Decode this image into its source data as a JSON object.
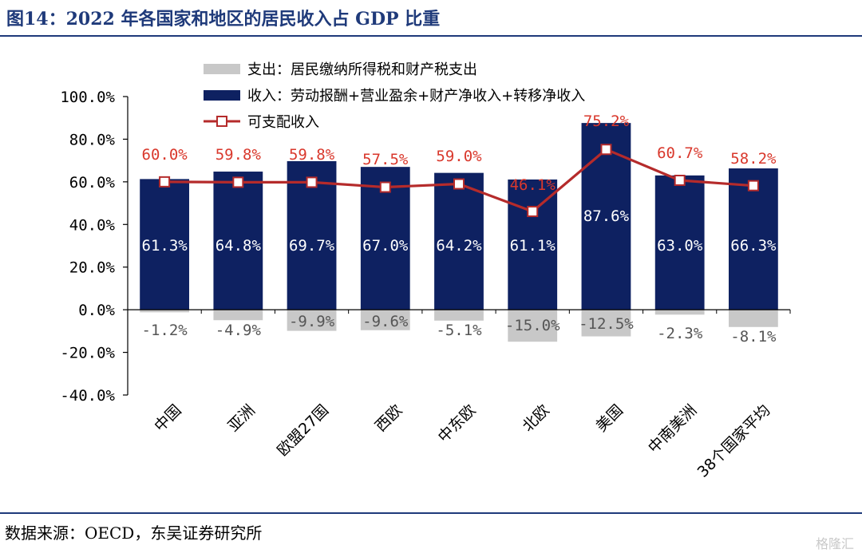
{
  "figure": {
    "title": "图14：2022 年各国家和地区的居民收入占 GDP 比重",
    "source": "数据来源：OECD，东吴证券研究所",
    "watermark": "格隆汇"
  },
  "chart_data": {
    "type": "bar",
    "categories": [
      "中国",
      "亚洲",
      "欧盟27国",
      "西欧",
      "中东欧",
      "北欧",
      "美国",
      "中南美洲",
      "38个国家平均"
    ],
    "series": [
      {
        "name": "支出：居民缴纳所得税和财产税支出",
        "kind": "bar",
        "color": "#c8c8c8",
        "values": [
          -1.2,
          -4.9,
          -9.9,
          -9.6,
          -5.1,
          -15.0,
          -12.5,
          -2.3,
          -8.1
        ]
      },
      {
        "name": "收入：劳动报酬+营业盈余+财产净收入+转移净收入",
        "kind": "bar",
        "color": "#0e2161",
        "values": [
          61.3,
          64.8,
          69.7,
          67.0,
          64.2,
          61.1,
          87.6,
          63.0,
          66.3
        ]
      },
      {
        "name": "可支配收入",
        "kind": "line",
        "color": "#b52b2b",
        "values": [
          60.0,
          59.8,
          59.8,
          57.5,
          59.0,
          46.1,
          75.2,
          60.7,
          58.2
        ]
      }
    ],
    "ylim": [
      -40,
      100
    ],
    "yticks": [
      "-40.0%",
      "-20.0%",
      "0.0%",
      "20.0%",
      "40.0%",
      "60.0%",
      "80.0%",
      "100.0%"
    ],
    "labels": {
      "expense": [
        "-1.2%",
        "-4.9%",
        "-9.9%",
        "-9.6%",
        "-5.1%",
        "-15.0%",
        "-12.5%",
        "-2.3%",
        "-8.1%"
      ],
      "income": [
        "61.3%",
        "64.8%",
        "69.7%",
        "67.0%",
        "64.2%",
        "61.1%",
        "87.6%",
        "63.0%",
        "66.3%"
      ],
      "disposable": [
        "60.0%",
        "59.8%",
        "59.8%",
        "57.5%",
        "59.0%",
        "46.1%",
        "75.2%",
        "60.7%",
        "58.2%"
      ]
    },
    "grid": false,
    "legend_position": "top"
  }
}
